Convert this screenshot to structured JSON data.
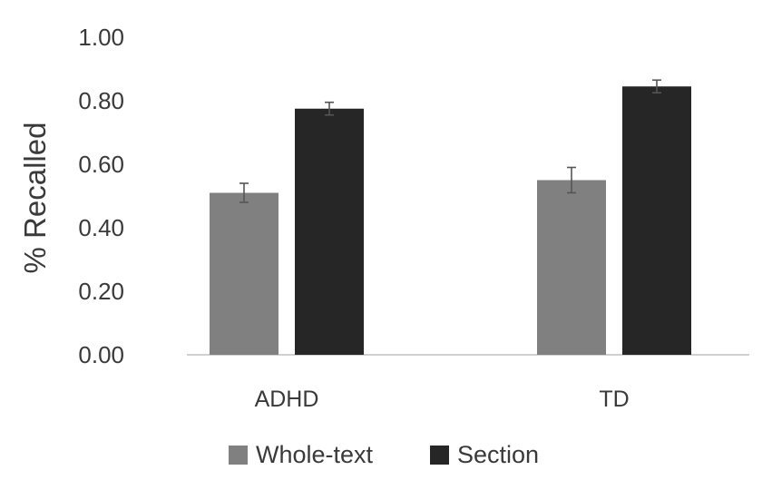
{
  "chart_data": {
    "type": "bar",
    "title": "",
    "xlabel": "",
    "ylabel": "% Recalled",
    "ylim": [
      0,
      1
    ],
    "yticks": [
      "0.00",
      "0.20",
      "0.40",
      "0.60",
      "0.80",
      "1.00"
    ],
    "ytick_values": [
      0,
      0.2,
      0.4,
      0.6,
      0.8,
      1.0
    ],
    "categories": [
      "ADHD",
      "TD"
    ],
    "series": [
      {
        "name": "Whole-text",
        "color": "#808080",
        "values": [
          0.51,
          0.55
        ],
        "errors": [
          0.03,
          0.04
        ]
      },
      {
        "name": "Section",
        "color": "#262626",
        "values": [
          0.775,
          0.845
        ],
        "errors": [
          0.02,
          0.02
        ]
      }
    ],
    "grid": false,
    "legend_position": "bottom",
    "error_bars": true
  }
}
